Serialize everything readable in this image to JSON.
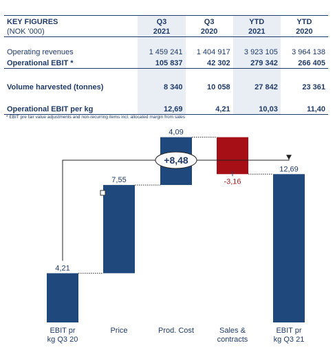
{
  "key_figures": {
    "header": {
      "title": "KEY FIGURES",
      "unit": "(NOK '000)",
      "columns": [
        {
          "period": "Q3",
          "year": "2021"
        },
        {
          "period": "Q3",
          "year": "2020"
        },
        {
          "period": "YTD",
          "year": "2021"
        },
        {
          "period": "YTD",
          "year": "2020"
        }
      ]
    },
    "rows": [
      {
        "label": "Operating revenues",
        "values": [
          "1 459 241",
          "1 404 917",
          "3 923 105",
          "3 964 138"
        ]
      },
      {
        "label": "Operational EBIT *",
        "values": [
          "105 837",
          "42 302",
          "279 342",
          "266 405"
        ]
      },
      {
        "label": "Volume harvested (tonnes)",
        "values": [
          "8 340",
          "10 058",
          "27 842",
          "23 361"
        ]
      },
      {
        "label": "Operational EBIT per kg",
        "values": [
          "12,69",
          "4,21",
          "10,03",
          "11,40"
        ]
      }
    ],
    "footnote": "* EBIT pre fair value adjustments and non-recurring items incl. allocated margin from sales"
  },
  "chart_data": {
    "type": "bar",
    "subtype": "waterfall",
    "categories": [
      [
        "EBIT pr",
        "kg Q3 20"
      ],
      [
        "Price"
      ],
      [
        "Prod. Cost"
      ],
      [
        "Sales &",
        "contracts"
      ],
      [
        "EBIT pr",
        "kg Q3 21"
      ]
    ],
    "steps": [
      {
        "kind": "total",
        "value": 4.21,
        "label": "4,21"
      },
      {
        "kind": "delta",
        "value": 7.55,
        "label": "7,55"
      },
      {
        "kind": "delta",
        "value": 4.09,
        "label": "4,09"
      },
      {
        "kind": "delta",
        "value": -3.16,
        "label": "-3,16"
      },
      {
        "kind": "total",
        "value": 12.69,
        "label": "12,69"
      }
    ],
    "total_change": {
      "value": 8.48,
      "label": "+8,48"
    },
    "ylim": [
      0,
      17
    ],
    "grid": false,
    "colors": {
      "total": "#1f497d",
      "increase": "#1f497d",
      "decrease": "#a50f15",
      "connector": "#333333",
      "text": "#1f3a6b"
    }
  }
}
